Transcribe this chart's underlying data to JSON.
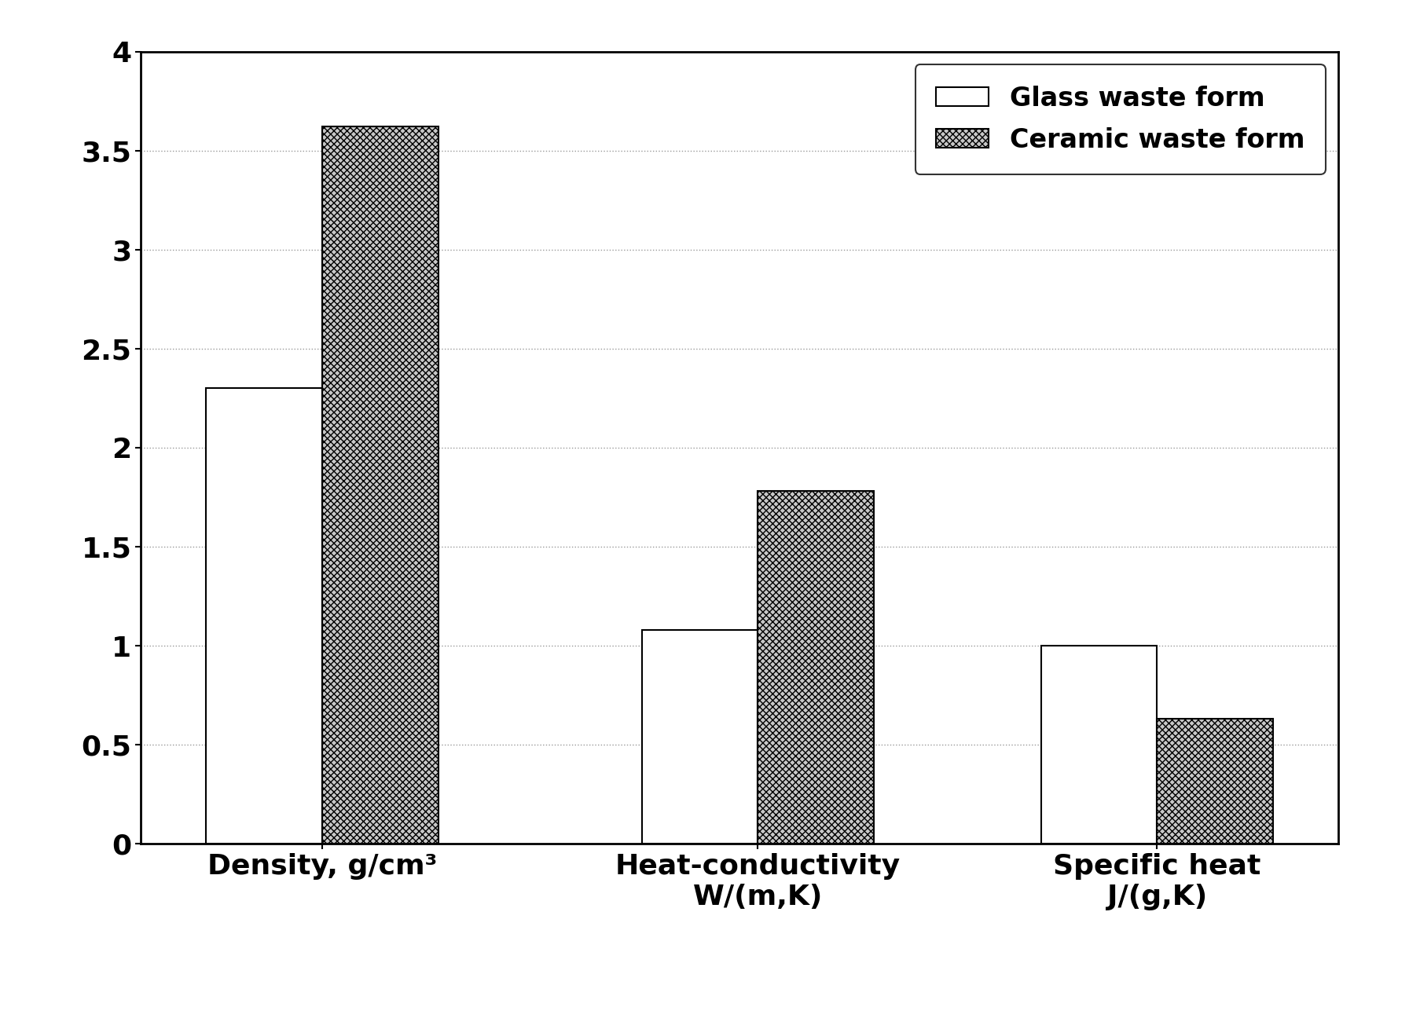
{
  "categories": [
    "Density, g/cm³",
    "Heat-conductivity\nW/(m,K)",
    "Specific heat\nJ/(g,K)"
  ],
  "glass_values": [
    2.3,
    1.08,
    1.0
  ],
  "ceramic_values": [
    3.62,
    1.78,
    0.63
  ],
  "glass_color": "#ffffff",
  "glass_edge_color": "#000000",
  "ceramic_color": "#c8c8c8",
  "ceramic_hatch": "xxxx",
  "ceramic_edge_color": "#000000",
  "legend_labels": [
    "Glass waste form",
    "Ceramic waste form"
  ],
  "ylim": [
    0,
    4
  ],
  "yticks": [
    0,
    0.5,
    1.0,
    1.5,
    2.0,
    2.5,
    3.0,
    3.5,
    4.0
  ],
  "ytick_labels": [
    "0",
    "0.5",
    "1",
    "1.5",
    "2",
    "2.5",
    "3",
    "3.5",
    "4"
  ],
  "bar_width": 0.32,
  "x_positions": [
    0.5,
    1.7,
    2.8
  ],
  "figsize": [
    17.93,
    13.1
  ],
  "dpi": 100,
  "tick_fontsize": 26,
  "label_fontsize": 26,
  "legend_fontsize": 24,
  "grid_color": "#999999",
  "grid_linewidth": 1.0,
  "spine_linewidth": 2.0,
  "xlim": [
    0.0,
    3.3
  ]
}
